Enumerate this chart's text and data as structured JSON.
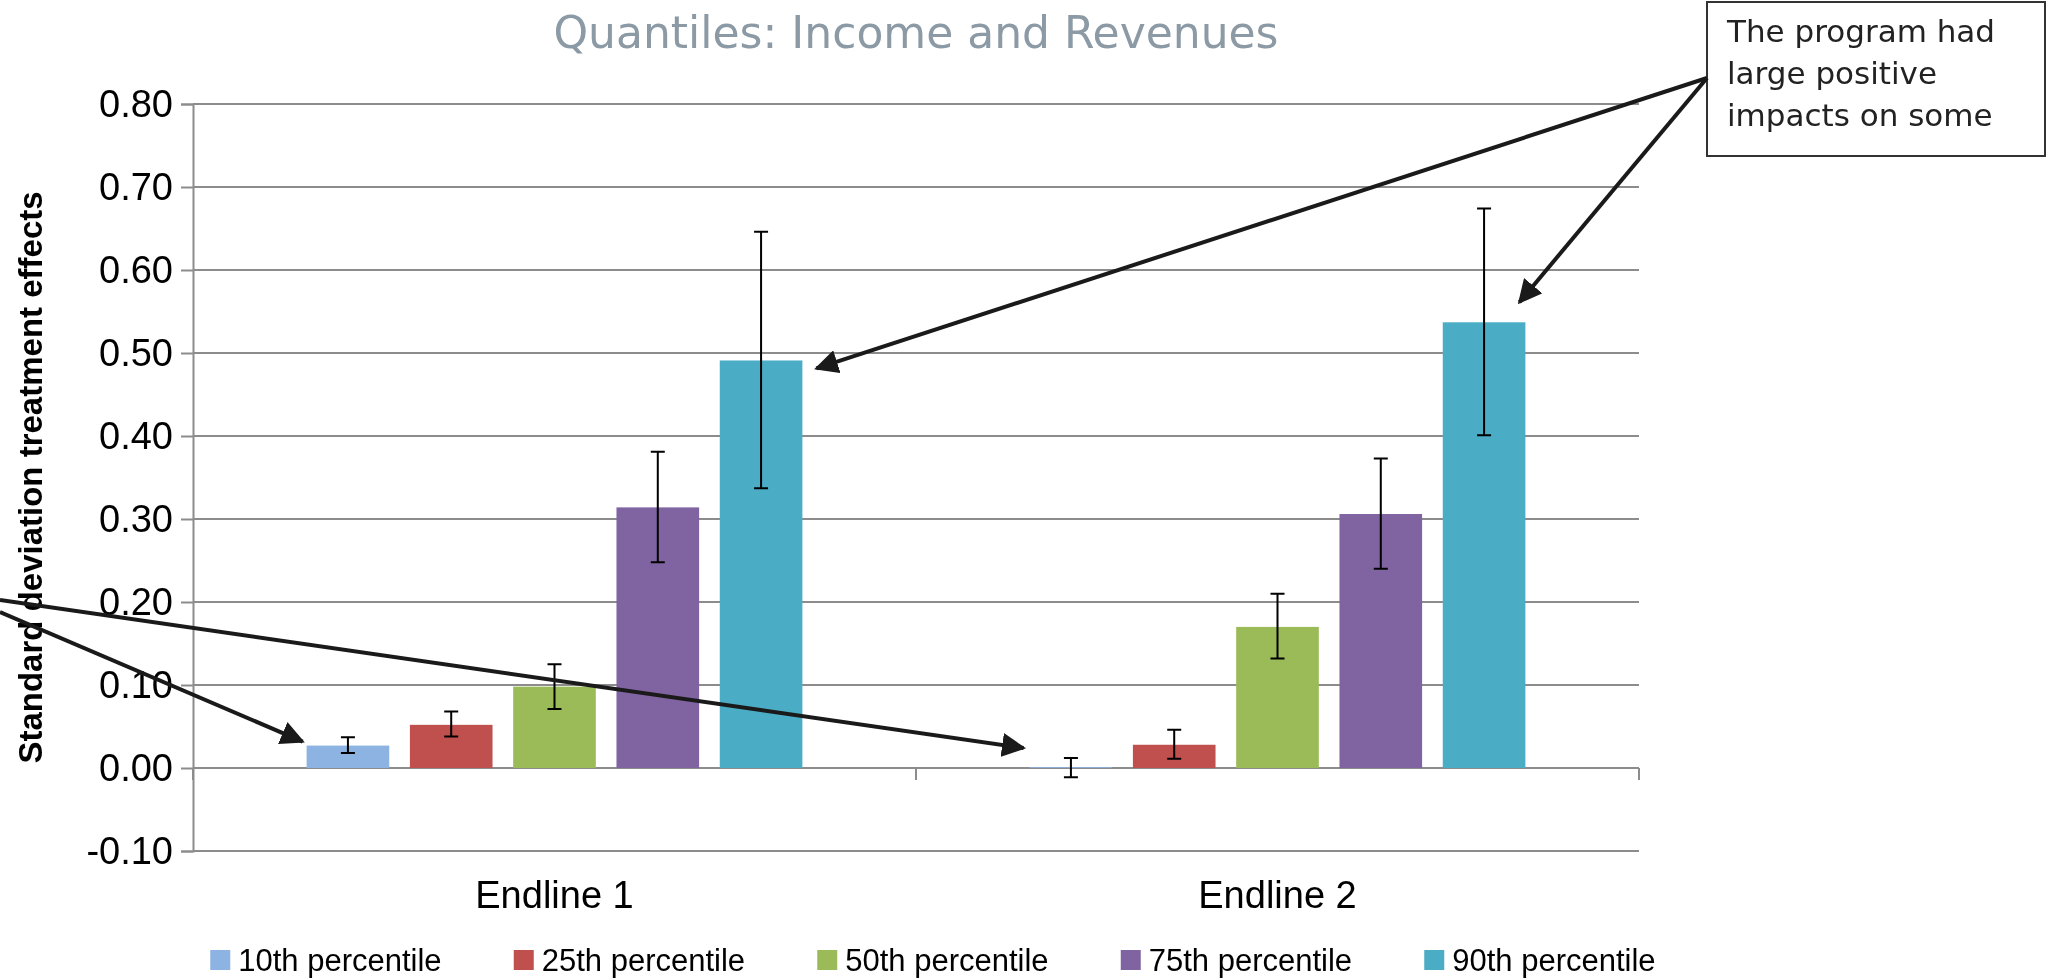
{
  "chart_data": {
    "type": "bar",
    "title": "Quantiles: Income and Revenues",
    "ylabel": "Standard deviation treatment effects",
    "categories": [
      "Endline 1",
      "Endline 2"
    ],
    "series": [
      {
        "name": "10th percentile",
        "color": "#8db3e2",
        "values": [
          0.027,
          0.001
        ],
        "errors": [
          [
            0.018,
            0.037
          ],
          [
            -0.011,
            0.012
          ]
        ]
      },
      {
        "name": "25th percentile",
        "color": "#c0504d",
        "values": [
          0.052,
          0.028
        ],
        "errors": [
          [
            0.038,
            0.068
          ],
          [
            0.011,
            0.046
          ]
        ]
      },
      {
        "name": "50th percentile",
        "color": "#9bbb59",
        "values": [
          0.098,
          0.17
        ],
        "errors": [
          [
            0.071,
            0.125
          ],
          [
            0.132,
            0.21
          ]
        ]
      },
      {
        "name": "75th percentile",
        "color": "#8064a2",
        "values": [
          0.314,
          0.306
        ],
        "errors": [
          [
            0.248,
            0.381
          ],
          [
            0.24,
            0.373
          ]
        ]
      },
      {
        "name": "90th percentile",
        "color": "#4bacc6",
        "values": [
          0.491,
          0.537
        ],
        "errors": [
          [
            0.337,
            0.646
          ],
          [
            0.401,
            0.674
          ]
        ]
      }
    ],
    "ylim": [
      -0.1,
      0.8
    ],
    "yticks": [
      {
        "value": -0.1,
        "label": "-0.10"
      },
      {
        "value": 0,
        "label": "0.00"
      },
      {
        "value": 0.1,
        "label": "0.10"
      },
      {
        "value": 0.2,
        "label": "0.20"
      },
      {
        "value": 0.3,
        "label": "0.30"
      },
      {
        "value": 0.4,
        "label": "0.40"
      },
      {
        "value": 0.5,
        "label": "0.50"
      },
      {
        "value": 0.6,
        "label": "0.60"
      },
      {
        "value": 0.7,
        "label": "0.70"
      },
      {
        "value": 0.8,
        "label": "0.80"
      }
    ],
    "grid": "y",
    "legend": "bottom",
    "annotations": [
      "The program had large positive impacts on some"
    ]
  }
}
